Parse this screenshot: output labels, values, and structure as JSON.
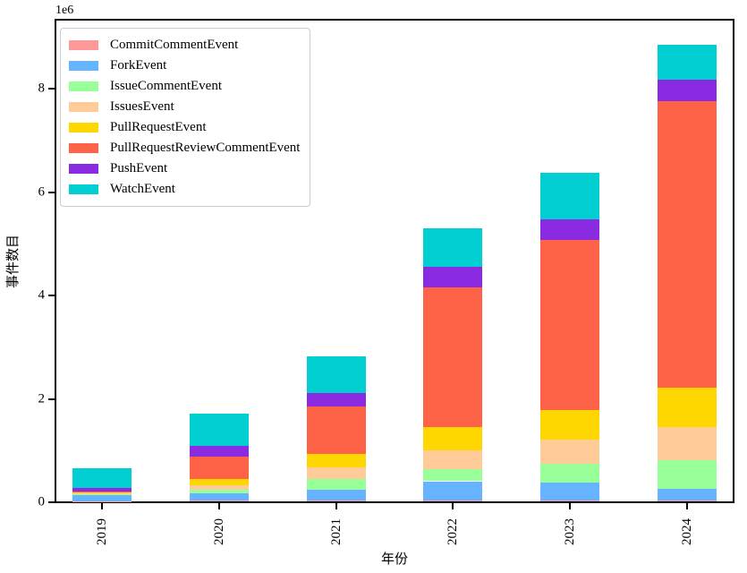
{
  "chart_data": {
    "type": "bar",
    "stacked": true,
    "title": "",
    "xlabel": "年份",
    "ylabel": "事件数目",
    "y_offset_text": "1e6",
    "categories": [
      "2019",
      "2020",
      "2021",
      "2022",
      "2023",
      "2024"
    ],
    "series": [
      {
        "name": "CommitCommentEvent",
        "color": "#ff9999",
        "values": [
          5000,
          10000,
          10000,
          10000,
          10000,
          10000
        ]
      },
      {
        "name": "ForkEvent",
        "color": "#66b3ff",
        "values": [
          120000,
          140000,
          210000,
          380000,
          360000,
          240000
        ]
      },
      {
        "name": "IssueCommentEvent",
        "color": "#99ff99",
        "values": [
          10000,
          70000,
          210000,
          230000,
          360000,
          540000
        ]
      },
      {
        "name": "IssuesEvent",
        "color": "#ffcc99",
        "values": [
          15000,
          100000,
          220000,
          360000,
          460000,
          640000
        ]
      },
      {
        "name": "PullRequestEvent",
        "color": "#ffd700",
        "values": [
          30000,
          120000,
          260000,
          460000,
          570000,
          770000
        ]
      },
      {
        "name": "PullRequestReviewCommentEvent",
        "color": "#ff6347",
        "values": [
          10000,
          430000,
          920000,
          2700000,
          3300000,
          5550000
        ]
      },
      {
        "name": "PushEvent",
        "color": "#8a2be2",
        "values": [
          70000,
          210000,
          260000,
          390000,
          400000,
          400000
        ]
      },
      {
        "name": "WatchEvent",
        "color": "#00ced1",
        "values": [
          380000,
          620000,
          720000,
          760000,
          890000,
          690000
        ]
      }
    ],
    "totals": [
      640000,
      1700000,
      2810000,
      5290000,
      6350000,
      8840000
    ],
    "yticks": [
      0,
      2000000,
      4000000,
      6000000,
      8000000
    ],
    "ytick_labels": [
      "0",
      "2",
      "4",
      "6",
      "8"
    ],
    "ylim": [
      0,
      9300000
    ],
    "grid": false,
    "legend_position": "upper left",
    "x_tick_rotation": 90
  }
}
